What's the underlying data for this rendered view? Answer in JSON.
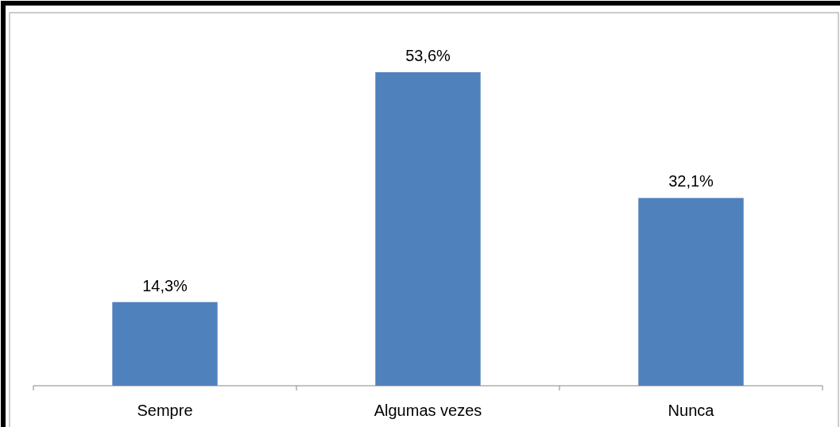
{
  "chart_data": {
    "type": "bar",
    "categories": [
      "Sempre",
      "Algumas vezes",
      "Nunca"
    ],
    "values": [
      14.3,
      53.6,
      32.1
    ],
    "value_labels": [
      "14,3%",
      "53,6%",
      "32,1%"
    ],
    "color": "#4f81bd"
  }
}
